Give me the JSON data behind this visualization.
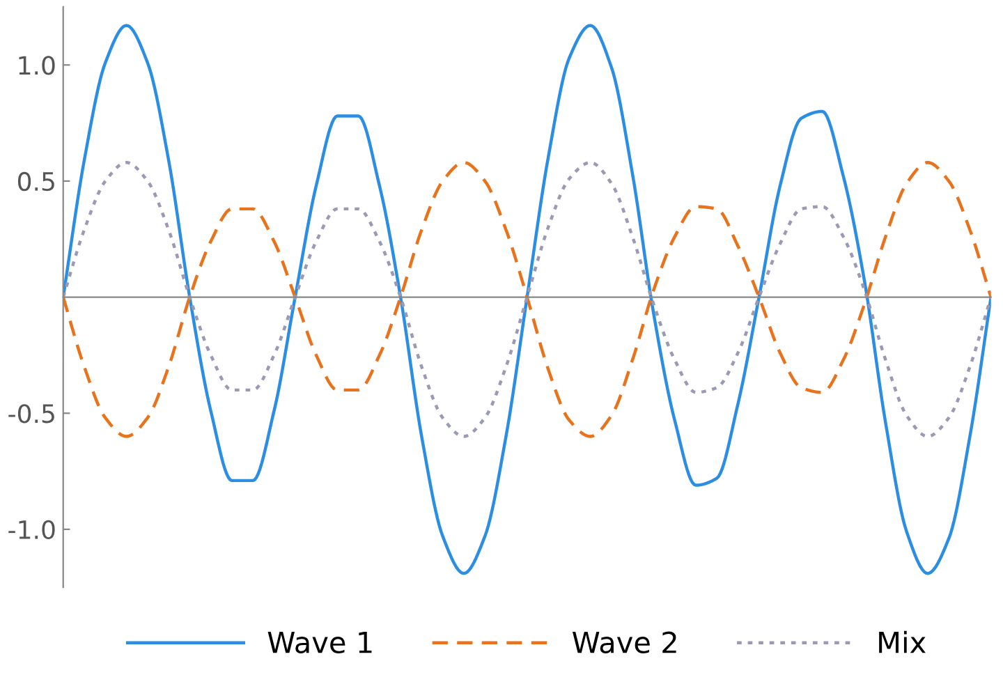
{
  "chart_data": {
    "type": "line",
    "categories": [
      null,
      null,
      null,
      null,
      null,
      null,
      null,
      null,
      null,
      null,
      null,
      null,
      null,
      null,
      null,
      null,
      null,
      null,
      null,
      null,
      null,
      null,
      null,
      null,
      null,
      null,
      null,
      null,
      null,
      null,
      null,
      null,
      null,
      null,
      null,
      null,
      null,
      null,
      null,
      null,
      null,
      null,
      null,
      null,
      null
    ],
    "series": [
      {
        "name": "Wave 1",
        "color": "#2b8ee3",
        "line_style": "solid",
        "values": [
          0,
          0.59,
          1.01,
          1.17,
          1.01,
          0.59,
          0,
          -0.49,
          -0.79,
          -0.79,
          -0.49,
          0,
          0.48,
          0.78,
          0.78,
          0.48,
          0,
          -0.6,
          -1.03,
          -1.19,
          -1.03,
          -0.6,
          0,
          0.6,
          1.03,
          1.17,
          0.99,
          0.53,
          -0.07,
          -0.53,
          -0.81,
          -0.78,
          -0.46,
          0,
          0.48,
          0.77,
          0.8,
          0.52,
          0.07,
          -0.54,
          -1.01,
          -1.19,
          -1.04,
          -0.6,
          0
        ]
      },
      {
        "name": "Wave 2",
        "color": "#e8731c",
        "line_style": "dashed",
        "values": [
          0,
          -0.3,
          -0.52,
          -0.6,
          -0.52,
          -0.3,
          0,
          0.24,
          0.38,
          0.38,
          0.24,
          0,
          -0.25,
          -0.4,
          -0.4,
          -0.25,
          0,
          0.29,
          0.5,
          0.58,
          0.5,
          0.29,
          0,
          -0.31,
          -0.53,
          -0.6,
          -0.51,
          -0.27,
          0.03,
          0.26,
          0.39,
          0.38,
          0.22,
          0,
          -0.24,
          -0.39,
          -0.41,
          -0.27,
          -0.03,
          0.26,
          0.49,
          0.58,
          0.5,
          0.29,
          0
        ]
      },
      {
        "name": "Mix",
        "color": "#9a9ab5",
        "line_style": "dotted",
        "values": [
          0,
          0.29,
          0.5,
          0.58,
          0.5,
          0.29,
          0,
          -0.25,
          -0.4,
          -0.4,
          -0.25,
          0,
          0.24,
          0.38,
          0.38,
          0.24,
          0,
          -0.3,
          -0.52,
          -0.6,
          -0.52,
          -0.3,
          0,
          0.3,
          0.51,
          0.58,
          0.49,
          0.26,
          -0.03,
          -0.27,
          -0.41,
          -0.39,
          -0.24,
          0,
          0.23,
          0.38,
          0.39,
          0.26,
          0.03,
          -0.27,
          -0.51,
          -0.6,
          -0.52,
          -0.3,
          0
        ]
      }
    ],
    "ylim": [
      -1.25,
      1.25
    ],
    "yticks": [
      {
        "value": -1.0,
        "label": "-1.0"
      },
      {
        "value": -0.5,
        "label": "-0.5"
      },
      {
        "value": 0.5,
        "label": "0.5"
      },
      {
        "value": 1.0,
        "label": "1.0"
      }
    ],
    "grid": false,
    "legend": "bottom",
    "marker": "none",
    "tick_labels": "y"
  }
}
